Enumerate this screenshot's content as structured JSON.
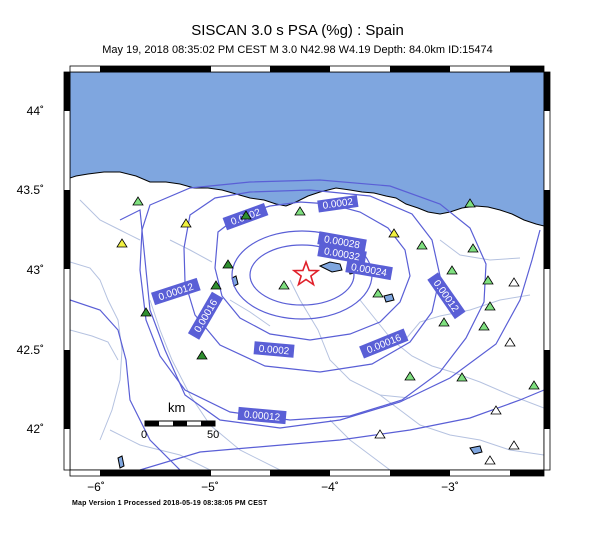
{
  "title": "SISCAN 3.0 s PSA (%g) : Spain",
  "subtitle": "May 19, 2018 08:35:02 PM CEST   M 3.0   N42.98 W4.19   Depth: 84.0km   ID:15474",
  "footer": "Map Version 1 Processed 2018-05-19 08:38:05 PM CEST",
  "lat_labels": [
    "44˚",
    "43.5˚",
    "43˚",
    "42.5˚",
    "42˚"
  ],
  "lon_labels": [
    "−6˚",
    "−5˚",
    "−4˚",
    "−3˚"
  ],
  "scale": {
    "unit": "km",
    "start": "0",
    "end": "50"
  },
  "contour_labels": [
    "0.0002",
    "0.00028",
    "0.00032",
    "0.00024",
    "0.00012",
    "0.00016",
    "0.0002",
    "0.00016",
    "0.00012",
    "0.00012",
    "0.0002"
  ],
  "colors": {
    "sea": "#7fa6df",
    "contour": "#5a5fd6",
    "label_bg": "#5a5fd6",
    "river": "#b5c2e0",
    "epicenter": "#e0202a",
    "station_green": "#7fe07f",
    "station_dark": "#2f8f2f",
    "station_yellow": "#f0f040"
  }
}
